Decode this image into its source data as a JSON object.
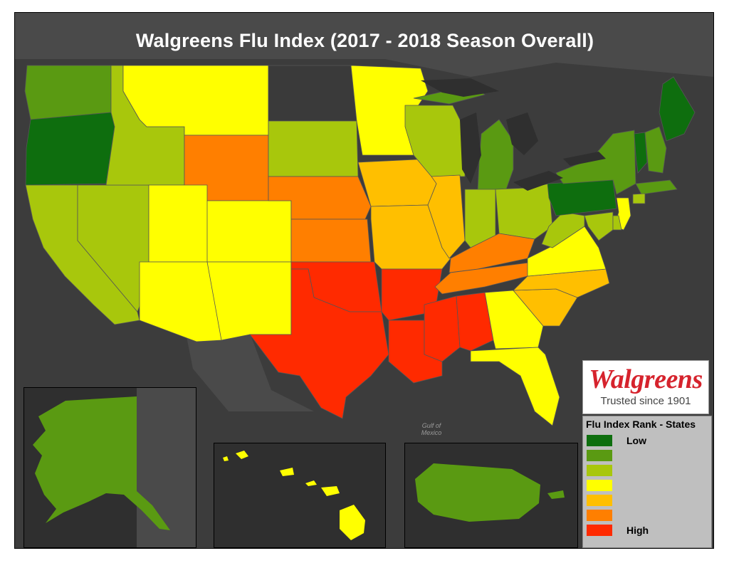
{
  "title": "Walgreens Flu Index (2017 - 2018 Season Overall)",
  "water_label": "Gulf of Mexico",
  "brand": {
    "name": "Walgreens",
    "tagline": "Trusted since 1901",
    "color": "#d6232d"
  },
  "legend": {
    "title": "Flu Index Rank - States",
    "items": [
      {
        "label": "Low",
        "color": "#0e6e0e"
      },
      {
        "label": "",
        "color": "#5a9a12"
      },
      {
        "label": "",
        "color": "#a8c70c"
      },
      {
        "label": "",
        "color": "#ffff00"
      },
      {
        "label": "",
        "color": "#ffbf00"
      },
      {
        "label": "",
        "color": "#ff7f00"
      },
      {
        "label": "High",
        "color": "#ff2a00"
      }
    ]
  },
  "state_ranks": {
    "Washington": 2,
    "Oregon": 1,
    "California": 3,
    "Nevada": 3,
    "Idaho": 3,
    "Montana": 4,
    "Wyoming": 6,
    "Utah": 4,
    "Arizona": 4,
    "Colorado": 4,
    "New Mexico": 4,
    "North Dakota": 0,
    "South Dakota": 3,
    "Nebraska": 6,
    "Kansas": 6,
    "Oklahoma": 7,
    "Texas": 7,
    "Minnesota": 4,
    "Iowa": 5,
    "Missouri": 5,
    "Arkansas": 7,
    "Louisiana": 7,
    "Wisconsin": 3,
    "Illinois": 5,
    "Michigan": 2,
    "Indiana": 3,
    "Ohio": 3,
    "Kentucky": 6,
    "Tennessee": 6,
    "Mississippi": 7,
    "Alabama": 7,
    "Georgia": 4,
    "Florida": 4,
    "South Carolina": 5,
    "North Carolina": 5,
    "Virginia": 4,
    "West Virginia": 3,
    "Pennsylvania": 1,
    "New York": 2,
    "Maine": 1,
    "Vermont": 1,
    "New Hampshire": 2,
    "Massachusetts": 2,
    "Connecticut": 3,
    "New Jersey": 4,
    "Maryland": 3,
    "Delaware": 3,
    "Alaska": 2,
    "Hawaii": 4,
    "Puerto Rico": 2
  }
}
